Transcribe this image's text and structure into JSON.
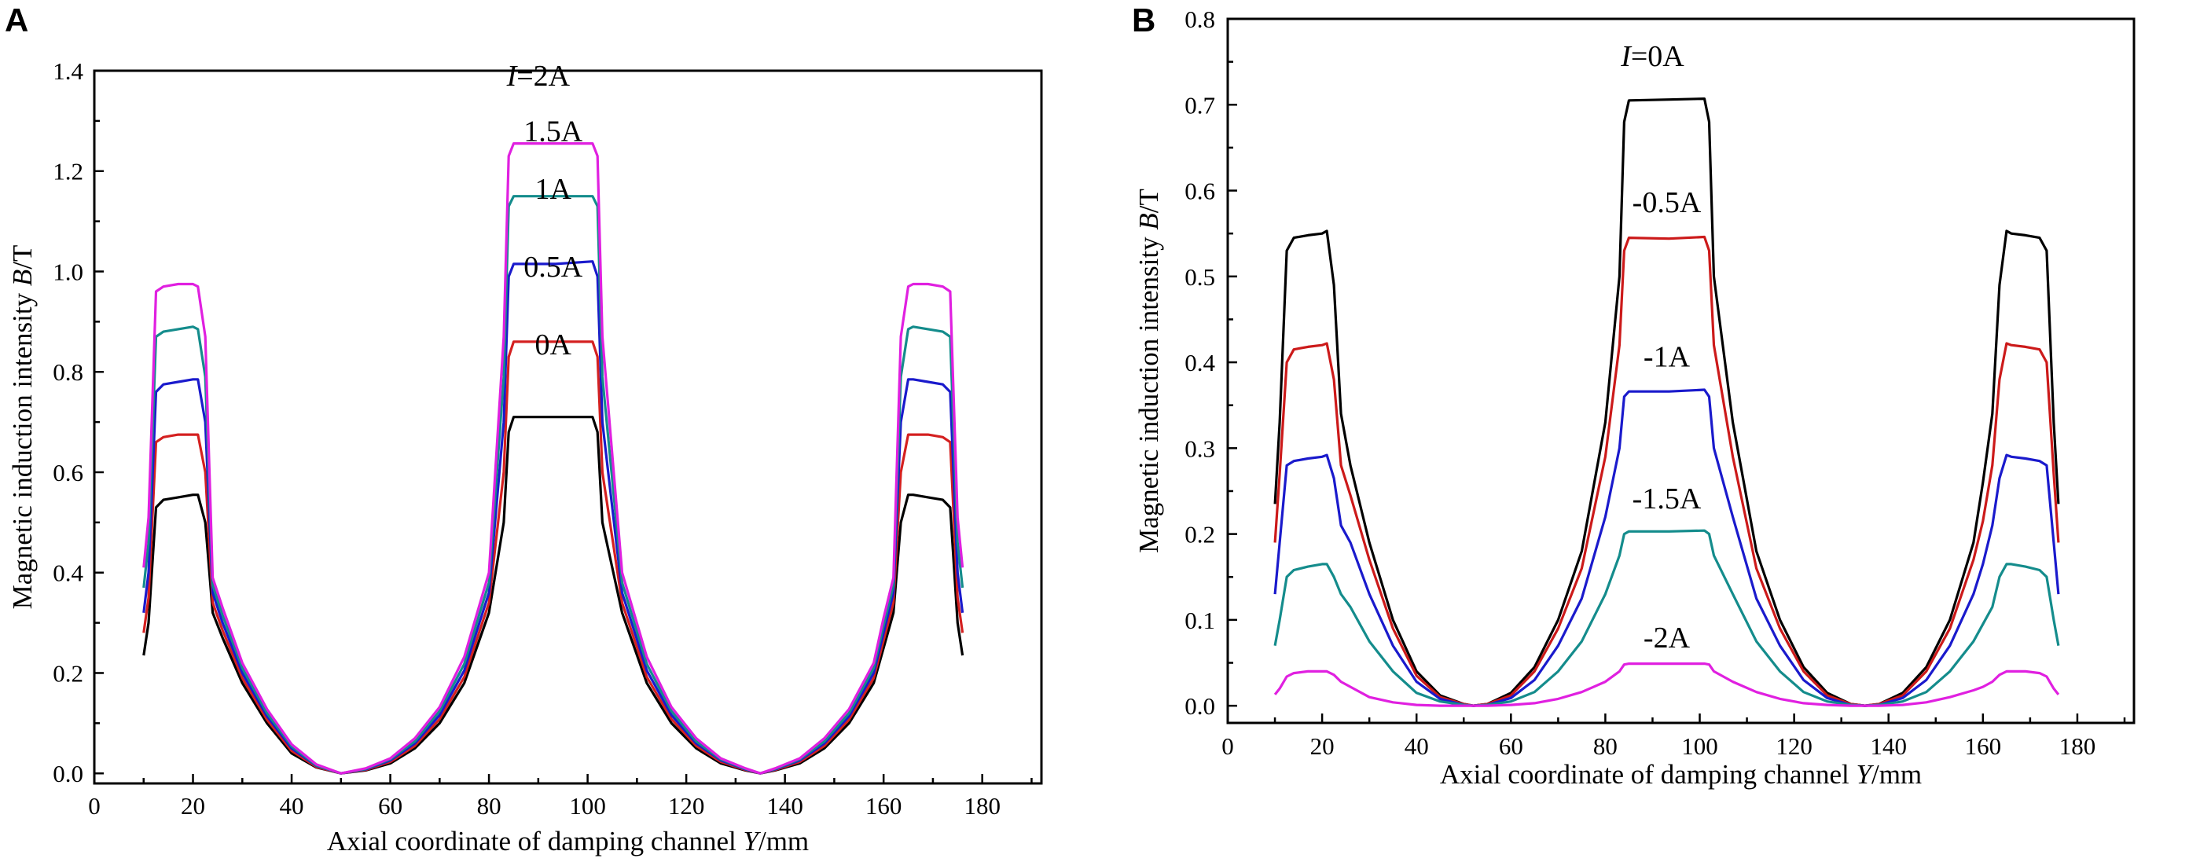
{
  "chart_data": [
    {
      "panel": "A",
      "type": "line",
      "title": "",
      "xlabel": "Axial coordinate of damping channel ",
      "xlabel_var": "Y",
      "xlabel_unit": "/mm",
      "ylabel": "Magnetic induction intensity ",
      "ylabel_var": "B",
      "ylabel_unit": "/T",
      "xlim": [
        0,
        192
      ],
      "ylim": [
        -0.02,
        1.4
      ],
      "xticks": [
        0,
        20,
        40,
        60,
        80,
        100,
        120,
        140,
        160,
        180
      ],
      "yticks": [
        "0.0",
        "0.2",
        "0.4",
        "0.6",
        "0.8",
        "1.0",
        "1.2",
        "1.4"
      ],
      "x": [
        10,
        11,
        12.5,
        14,
        17,
        20,
        21,
        22.5,
        24,
        26,
        30,
        35,
        40,
        45,
        50,
        55,
        60,
        65,
        70,
        75,
        80,
        83,
        84,
        85,
        93.5,
        101,
        102,
        103,
        107,
        112,
        117,
        122,
        127,
        132,
        135,
        138,
        143,
        148,
        153,
        158,
        160,
        162,
        163.5,
        165,
        166,
        169,
        172,
        173.5,
        175,
        176
      ],
      "series": [
        {
          "name": "0A",
          "color": "#000000",
          "values": [
            0.235,
            0.3,
            0.53,
            0.545,
            0.55,
            0.555,
            0.555,
            0.5,
            0.32,
            0.27,
            0.18,
            0.1,
            0.04,
            0.012,
            0.0,
            0.006,
            0.02,
            0.05,
            0.1,
            0.18,
            0.32,
            0.5,
            0.68,
            0.71,
            0.71,
            0.71,
            0.68,
            0.5,
            0.32,
            0.18,
            0.1,
            0.05,
            0.02,
            0.006,
            0.0,
            0.006,
            0.02,
            0.05,
            0.1,
            0.18,
            0.25,
            0.32,
            0.5,
            0.555,
            0.555,
            0.55,
            0.545,
            0.53,
            0.3,
            0.235
          ]
        },
        {
          "name": "0.5A",
          "color": "#d42020",
          "values": [
            0.28,
            0.35,
            0.66,
            0.67,
            0.675,
            0.675,
            0.675,
            0.6,
            0.34,
            0.285,
            0.19,
            0.107,
            0.045,
            0.013,
            0.0,
            0.007,
            0.023,
            0.055,
            0.108,
            0.192,
            0.34,
            0.6,
            0.83,
            0.86,
            0.86,
            0.86,
            0.83,
            0.6,
            0.34,
            0.192,
            0.108,
            0.055,
            0.023,
            0.007,
            0.0,
            0.007,
            0.023,
            0.055,
            0.107,
            0.19,
            0.265,
            0.34,
            0.6,
            0.675,
            0.675,
            0.675,
            0.67,
            0.66,
            0.35,
            0.28
          ]
        },
        {
          "name": "1A",
          "color": "#1a1acc",
          "values": [
            0.32,
            0.4,
            0.76,
            0.775,
            0.78,
            0.785,
            0.785,
            0.7,
            0.36,
            0.3,
            0.2,
            0.114,
            0.05,
            0.015,
            0.0,
            0.008,
            0.026,
            0.06,
            0.116,
            0.205,
            0.36,
            0.7,
            0.99,
            1.015,
            1.015,
            1.02,
            0.99,
            0.7,
            0.36,
            0.205,
            0.116,
            0.06,
            0.026,
            0.008,
            0.0,
            0.008,
            0.026,
            0.06,
            0.114,
            0.2,
            0.28,
            0.36,
            0.7,
            0.785,
            0.785,
            0.78,
            0.775,
            0.76,
            0.4,
            0.32
          ]
        },
        {
          "name": "1.5A",
          "color": "#148c8c",
          "values": [
            0.37,
            0.46,
            0.87,
            0.88,
            0.885,
            0.89,
            0.885,
            0.79,
            0.375,
            0.315,
            0.21,
            0.12,
            0.054,
            0.016,
            0.0,
            0.009,
            0.028,
            0.064,
            0.124,
            0.218,
            0.38,
            0.79,
            1.13,
            1.15,
            1.15,
            1.15,
            1.13,
            0.79,
            0.38,
            0.218,
            0.124,
            0.064,
            0.028,
            0.009,
            0.0,
            0.009,
            0.028,
            0.064,
            0.12,
            0.21,
            0.295,
            0.375,
            0.79,
            0.885,
            0.89,
            0.885,
            0.88,
            0.87,
            0.46,
            0.37
          ]
        },
        {
          "name": "2A",
          "color": "#e020e0",
          "values": [
            0.41,
            0.51,
            0.96,
            0.97,
            0.975,
            0.975,
            0.97,
            0.87,
            0.39,
            0.33,
            0.22,
            0.128,
            0.058,
            0.018,
            0.0,
            0.01,
            0.03,
            0.07,
            0.132,
            0.232,
            0.4,
            0.87,
            1.23,
            1.255,
            1.255,
            1.255,
            1.23,
            0.87,
            0.4,
            0.232,
            0.132,
            0.07,
            0.03,
            0.01,
            0.0,
            0.01,
            0.03,
            0.07,
            0.128,
            0.22,
            0.31,
            0.39,
            0.87,
            0.97,
            0.975,
            0.975,
            0.97,
            0.96,
            0.51,
            0.41
          ]
        }
      ],
      "curve_labels": [
        {
          "prefix": "I",
          "text": "=2A",
          "x": 90,
          "y": 1.37
        },
        {
          "prefix": "",
          "text": "1.5A",
          "x": 93,
          "y": 1.26
        },
        {
          "prefix": "",
          "text": "1A",
          "x": 93,
          "y": 1.145
        },
        {
          "prefix": "",
          "text": "0.5A",
          "x": 93,
          "y": 0.99
        },
        {
          "prefix": "",
          "text": "0A",
          "x": 93,
          "y": 0.835
        }
      ]
    },
    {
      "panel": "B",
      "type": "line",
      "title": "",
      "xlabel": "Axial coordinate of damping channel ",
      "xlabel_var": "Y",
      "xlabel_unit": "/mm",
      "ylabel": "Magnetic induction intensity ",
      "ylabel_var": "B",
      "ylabel_unit": "/T",
      "xlim": [
        0,
        192
      ],
      "ylim": [
        -0.02,
        0.8
      ],
      "xticks": [
        0,
        20,
        40,
        60,
        80,
        100,
        120,
        140,
        160,
        180
      ],
      "yticks": [
        "0.0",
        "0.1",
        "0.2",
        "0.3",
        "0.4",
        "0.5",
        "0.6",
        "0.7",
        "0.8"
      ],
      "x": [
        10,
        11,
        12.5,
        14,
        17,
        20,
        21,
        22.5,
        24,
        26,
        30,
        35,
        40,
        45,
        50,
        52,
        55,
        60,
        65,
        70,
        75,
        80,
        83,
        84,
        85,
        93.5,
        101,
        102,
        103,
        107,
        112,
        117,
        122,
        127,
        132,
        135,
        138,
        143,
        148,
        153,
        158,
        160,
        162,
        163.5,
        165,
        166,
        169,
        172,
        173.5,
        175,
        176
      ],
      "series": [
        {
          "name": "0A",
          "color": "#000000",
          "values": [
            0.235,
            0.33,
            0.53,
            0.545,
            0.548,
            0.55,
            0.553,
            0.49,
            0.34,
            0.28,
            0.19,
            0.1,
            0.04,
            0.012,
            0.002,
            0.0,
            0.002,
            0.015,
            0.045,
            0.1,
            0.18,
            0.33,
            0.5,
            0.68,
            0.705,
            0.706,
            0.707,
            0.68,
            0.5,
            0.33,
            0.18,
            0.1,
            0.045,
            0.015,
            0.002,
            0.0,
            0.002,
            0.015,
            0.045,
            0.1,
            0.19,
            0.26,
            0.34,
            0.49,
            0.553,
            0.55,
            0.548,
            0.545,
            0.53,
            0.33,
            0.235
          ]
        },
        {
          "name": "-0.5A",
          "color": "#cc1a1a",
          "values": [
            0.19,
            0.27,
            0.4,
            0.415,
            0.418,
            0.42,
            0.422,
            0.38,
            0.28,
            0.245,
            0.17,
            0.09,
            0.035,
            0.01,
            0.002,
            0.0,
            0.002,
            0.012,
            0.04,
            0.09,
            0.16,
            0.29,
            0.42,
            0.53,
            0.545,
            0.544,
            0.546,
            0.53,
            0.42,
            0.29,
            0.16,
            0.09,
            0.04,
            0.012,
            0.002,
            0.0,
            0.002,
            0.012,
            0.04,
            0.09,
            0.17,
            0.215,
            0.28,
            0.38,
            0.422,
            0.42,
            0.418,
            0.415,
            0.4,
            0.27,
            0.19
          ]
        },
        {
          "name": "-1A",
          "color": "#1a1acc",
          "values": [
            0.13,
            0.19,
            0.28,
            0.285,
            0.288,
            0.29,
            0.292,
            0.265,
            0.21,
            0.19,
            0.13,
            0.07,
            0.028,
            0.008,
            0.001,
            0.0,
            0.001,
            0.009,
            0.03,
            0.07,
            0.125,
            0.22,
            0.3,
            0.36,
            0.366,
            0.366,
            0.368,
            0.36,
            0.3,
            0.22,
            0.125,
            0.07,
            0.03,
            0.009,
            0.001,
            0.0,
            0.001,
            0.009,
            0.03,
            0.07,
            0.13,
            0.165,
            0.21,
            0.265,
            0.292,
            0.29,
            0.288,
            0.285,
            0.28,
            0.19,
            0.13
          ]
        },
        {
          "name": "-1.5A",
          "color": "#148c8c",
          "values": [
            0.07,
            0.1,
            0.15,
            0.158,
            0.162,
            0.165,
            0.165,
            0.15,
            0.13,
            0.115,
            0.075,
            0.04,
            0.015,
            0.005,
            0.001,
            0.0,
            0.001,
            0.005,
            0.016,
            0.04,
            0.075,
            0.13,
            0.175,
            0.2,
            0.203,
            0.203,
            0.204,
            0.2,
            0.175,
            0.13,
            0.075,
            0.04,
            0.016,
            0.005,
            0.001,
            0.0,
            0.001,
            0.005,
            0.016,
            0.04,
            0.075,
            0.095,
            0.115,
            0.15,
            0.165,
            0.165,
            0.162,
            0.158,
            0.15,
            0.1,
            0.07
          ]
        },
        {
          "name": "-2A",
          "color": "#e020e0",
          "values": [
            0.013,
            0.02,
            0.034,
            0.038,
            0.04,
            0.04,
            0.04,
            0.036,
            0.028,
            0.022,
            0.01,
            0.004,
            0.001,
            0.0,
            0.0,
            0.0,
            0.0,
            0.001,
            0.003,
            0.008,
            0.016,
            0.028,
            0.04,
            0.048,
            0.049,
            0.049,
            0.049,
            0.048,
            0.04,
            0.028,
            0.016,
            0.008,
            0.003,
            0.001,
            0.0,
            0.0,
            0.0,
            0.001,
            0.004,
            0.01,
            0.018,
            0.022,
            0.028,
            0.036,
            0.04,
            0.04,
            0.04,
            0.038,
            0.034,
            0.02,
            0.013
          ]
        }
      ],
      "curve_labels": [
        {
          "prefix": "I",
          "text": "=0A",
          "x": 90,
          "y": 0.745
        },
        {
          "prefix": "",
          "text": "-0.5A",
          "x": 93,
          "y": 0.575
        },
        {
          "prefix": "",
          "text": "-1A",
          "x": 93,
          "y": 0.395
        },
        {
          "prefix": "",
          "text": "-1.5A",
          "x": 93,
          "y": 0.23
        },
        {
          "prefix": "",
          "text": "-2A",
          "x": 93,
          "y": 0.068
        }
      ]
    }
  ]
}
